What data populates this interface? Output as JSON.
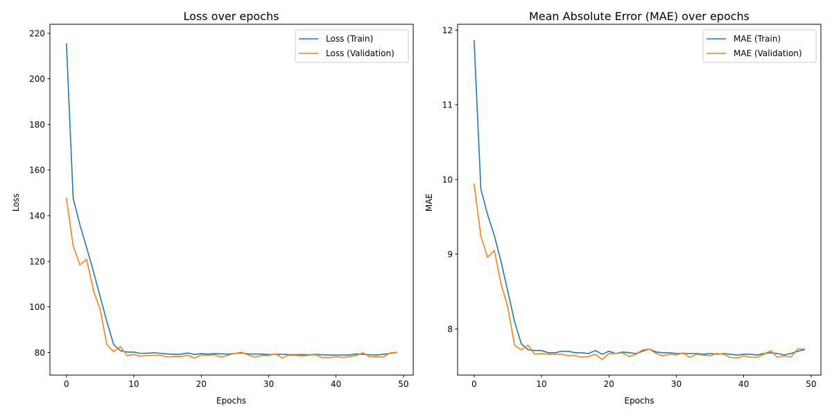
{
  "chart_data": [
    {
      "type": "line",
      "title": "Loss over epochs",
      "xlabel": "Epochs",
      "ylabel": "Loss",
      "xlim": [
        -2.45,
        51.45
      ],
      "ylim": [
        70.1,
        223.9
      ],
      "xticks": [
        0,
        10,
        20,
        30,
        40,
        50
      ],
      "yticks": [
        80,
        100,
        120,
        140,
        160,
        180,
        200,
        220
      ],
      "grid": false,
      "legend_position": "upper-right",
      "x": [
        0,
        1,
        2,
        3,
        4,
        5,
        6,
        7,
        8,
        9,
        10,
        11,
        12,
        13,
        14,
        15,
        16,
        17,
        18,
        19,
        20,
        21,
        22,
        23,
        24,
        25,
        26,
        27,
        28,
        29,
        30,
        31,
        32,
        33,
        34,
        35,
        36,
        37,
        38,
        39,
        40,
        41,
        42,
        43,
        44,
        45,
        46,
        47,
        48,
        49
      ],
      "series": [
        {
          "name": "Loss (Train)",
          "color": "#1f77b4",
          "values": [
            215.3,
            147.6,
            136.0,
            126.0,
            115.6,
            104.5,
            93.6,
            83.5,
            80.8,
            80.2,
            80.2,
            79.6,
            79.7,
            79.9,
            79.6,
            79.4,
            79.2,
            79.2,
            79.8,
            79.1,
            79.5,
            79.3,
            79.5,
            79.4,
            79.3,
            79.6,
            79.8,
            79.4,
            79.3,
            79.3,
            79.1,
            79.2,
            79.2,
            79.1,
            79.0,
            79.1,
            79.0,
            79.2,
            79.0,
            78.9,
            78.9,
            78.9,
            78.9,
            79.4,
            79.2,
            79.0,
            78.9,
            79.2,
            79.6,
            80.0
          ]
        },
        {
          "name": "Loss (Validation)",
          "color": "#ff7f0e",
          "values": [
            147.6,
            126.8,
            118.4,
            120.9,
            107.2,
            98.9,
            83.5,
            80.4,
            82.6,
            78.6,
            79.2,
            78.4,
            78.7,
            78.8,
            78.8,
            78.0,
            78.3,
            78.2,
            78.8,
            77.6,
            78.9,
            78.8,
            79.0,
            78.0,
            78.9,
            79.6,
            80.1,
            78.9,
            78.0,
            78.7,
            78.7,
            79.4,
            77.6,
            78.9,
            78.7,
            78.4,
            78.9,
            79.0,
            77.8,
            77.7,
            78.2,
            77.8,
            78.2,
            78.7,
            79.9,
            78.1,
            78.2,
            78.0,
            79.8,
            80.1
          ]
        }
      ]
    },
    {
      "type": "line",
      "title": "Mean Absolute Error (MAE) over epochs",
      "xlabel": "Epochs",
      "ylabel": "MAE",
      "xlim": [
        -2.45,
        51.45
      ],
      "ylim": [
        7.381,
        12.079
      ],
      "xticks": [
        0,
        10,
        20,
        30,
        40,
        50
      ],
      "yticks": [
        8,
        9,
        10,
        11,
        12
      ],
      "grid": false,
      "legend_position": "upper-right",
      "x": [
        0,
        1,
        2,
        3,
        4,
        5,
        6,
        7,
        8,
        9,
        10,
        11,
        12,
        13,
        14,
        15,
        16,
        17,
        18,
        19,
        20,
        21,
        22,
        23,
        24,
        25,
        26,
        27,
        28,
        29,
        30,
        31,
        32,
        33,
        34,
        35,
        36,
        37,
        38,
        39,
        40,
        41,
        42,
        43,
        44,
        45,
        46,
        47,
        48,
        49
      ],
      "series": [
        {
          "name": "MAE (Train)",
          "color": "#1f77b4",
          "values": [
            11.86,
            9.87,
            9.53,
            9.25,
            8.9,
            8.5,
            8.1,
            7.8,
            7.72,
            7.71,
            7.71,
            7.68,
            7.68,
            7.7,
            7.7,
            7.68,
            7.68,
            7.67,
            7.71,
            7.66,
            7.7,
            7.67,
            7.69,
            7.68,
            7.67,
            7.7,
            7.73,
            7.69,
            7.68,
            7.68,
            7.67,
            7.67,
            7.67,
            7.67,
            7.66,
            7.67,
            7.66,
            7.67,
            7.66,
            7.65,
            7.66,
            7.66,
            7.65,
            7.67,
            7.68,
            7.67,
            7.65,
            7.67,
            7.7,
            7.72
          ]
        },
        {
          "name": "MAE (Validation)",
          "color": "#ff7f0e",
          "values": [
            9.94,
            9.24,
            8.96,
            9.05,
            8.6,
            8.29,
            7.78,
            7.72,
            7.78,
            7.66,
            7.67,
            7.66,
            7.66,
            7.66,
            7.64,
            7.64,
            7.62,
            7.63,
            7.66,
            7.59,
            7.67,
            7.67,
            7.68,
            7.63,
            7.66,
            7.72,
            7.73,
            7.67,
            7.64,
            7.66,
            7.65,
            7.68,
            7.62,
            7.66,
            7.65,
            7.64,
            7.67,
            7.66,
            7.62,
            7.61,
            7.64,
            7.62,
            7.62,
            7.66,
            7.71,
            7.62,
            7.64,
            7.62,
            7.73,
            7.73
          ]
        }
      ]
    }
  ]
}
